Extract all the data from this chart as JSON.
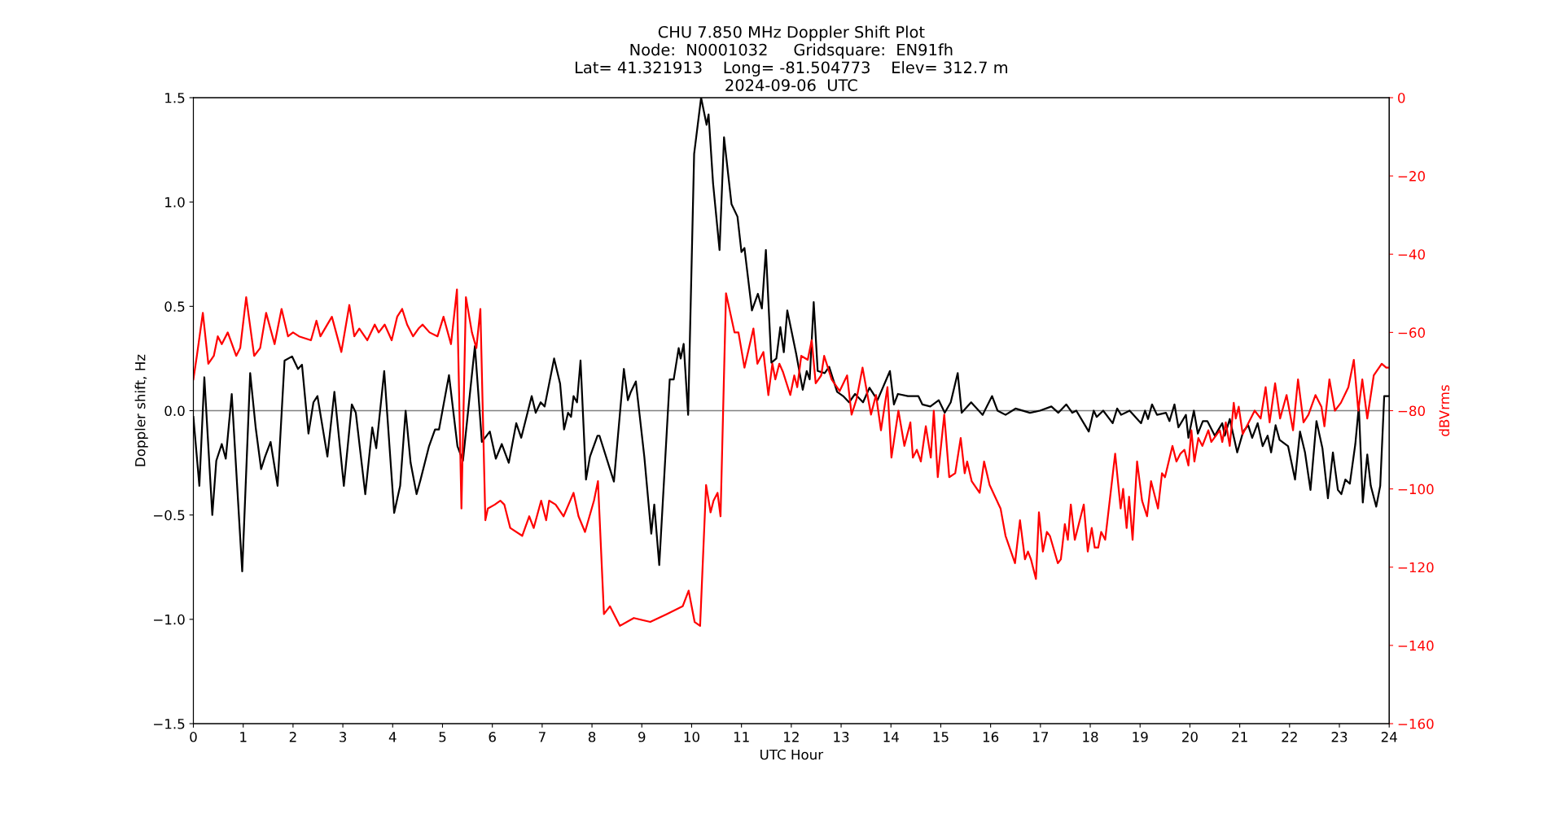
{
  "chart_data": {
    "type": "line",
    "title": "CHU 7.850 MHz Doppler Shift Plot\nNode:  N0001032     Gridsquare:  EN91fh\nLat= 41.321913    Long= -81.504773    Elev= 312.7 m\n2024-09-06  UTC",
    "xlabel": "UTC Hour",
    "ylabel": "Doppler shift, Hz",
    "y2label": "dBVrms",
    "xlim": [
      0,
      24
    ],
    "xticks": [
      0,
      1,
      2,
      3,
      4,
      5,
      6,
      7,
      8,
      9,
      10,
      11,
      12,
      13,
      14,
      15,
      16,
      17,
      18,
      19,
      20,
      21,
      22,
      23,
      24
    ],
    "ylim": [
      -1.5,
      1.5
    ],
    "yticks": [
      {
        "value": -1.5,
        "label": "−1.5"
      },
      {
        "value": -1.0,
        "label": "−1.0"
      },
      {
        "value": -0.5,
        "label": "−0.5"
      },
      {
        "value": 0.0,
        "label": "0.0"
      },
      {
        "value": 0.5,
        "label": "0.5"
      },
      {
        "value": 1.0,
        "label": "1.0"
      },
      {
        "value": 1.5,
        "label": "1.5"
      }
    ],
    "y2lim": [
      -160,
      0
    ],
    "y2ticks": [
      {
        "value": -160,
        "label": "−160"
      },
      {
        "value": -140,
        "label": "−140"
      },
      {
        "value": -120,
        "label": "−120"
      },
      {
        "value": -100,
        "label": "−100"
      },
      {
        "value": -80,
        "label": "−80"
      },
      {
        "value": -60,
        "label": "−60"
      },
      {
        "value": -40,
        "label": "−40"
      },
      {
        "value": -20,
        "label": "−20"
      },
      0
    ],
    "grid": false,
    "legend": false,
    "line_style": "solid",
    "marker": "none",
    "ref_lines": [
      {
        "axis": "y",
        "value": 0,
        "color": "#808080"
      }
    ],
    "series": [
      {
        "color": "#000000",
        "axis": "y",
        "x": [
          0.0,
          0.12,
          0.22,
          0.38,
          0.46,
          0.57,
          0.65,
          0.77,
          0.98,
          1.14,
          1.25,
          1.36,
          1.44,
          1.55,
          1.69,
          1.83,
          1.98,
          2.1,
          2.18,
          2.31,
          2.41,
          2.49,
          2.69,
          2.83,
          3.02,
          3.18,
          3.26,
          3.45,
          3.59,
          3.67,
          3.83,
          4.03,
          4.15,
          4.26,
          4.36,
          4.48,
          4.56,
          4.73,
          4.85,
          4.93,
          5.13,
          5.3,
          5.41,
          5.65,
          5.79,
          5.95,
          6.07,
          6.19,
          6.33,
          6.48,
          6.58,
          6.79,
          6.87,
          6.97,
          7.05,
          7.24,
          7.36,
          7.44,
          7.52,
          7.58,
          7.63,
          7.7,
          7.77,
          7.88,
          7.96,
          8.11,
          8.15,
          8.44,
          8.64,
          8.72,
          8.78,
          8.88,
          9.05,
          9.19,
          9.25,
          9.35,
          9.56,
          9.64,
          9.74,
          9.78,
          9.84,
          9.93,
          10.05,
          10.19,
          10.3,
          10.34,
          10.43,
          10.56,
          10.65,
          10.8,
          10.92,
          11.0,
          11.06,
          11.21,
          11.33,
          11.41,
          11.49,
          11.6,
          11.7,
          11.78,
          11.85,
          11.92,
          12.1,
          12.23,
          12.31,
          12.37,
          12.45,
          12.53,
          12.67,
          12.76,
          12.92,
          13.04,
          13.16,
          13.28,
          13.44,
          13.57,
          13.73,
          13.98,
          14.06,
          14.14,
          14.34,
          14.55,
          14.63,
          14.79,
          14.96,
          15.08,
          15.2,
          15.34,
          15.42,
          15.61,
          15.84,
          16.03,
          16.14,
          16.3,
          16.5,
          16.79,
          16.99,
          17.22,
          17.36,
          17.52,
          17.64,
          17.72,
          17.97,
          18.07,
          18.13,
          18.26,
          18.45,
          18.54,
          18.62,
          18.79,
          19.02,
          19.1,
          19.16,
          19.24,
          19.34,
          19.52,
          19.59,
          19.69,
          19.77,
          19.92,
          19.97,
          20.08,
          20.16,
          20.26,
          20.35,
          20.5,
          20.65,
          20.7,
          20.8,
          20.95,
          21.07,
          21.17,
          21.25,
          21.36,
          21.46,
          21.56,
          21.63,
          21.72,
          21.8,
          21.97,
          22.11,
          22.21,
          22.31,
          22.42,
          22.54,
          22.66,
          22.77,
          22.87,
          22.97,
          23.04,
          23.12,
          23.21,
          23.32,
          23.39,
          23.47,
          23.56,
          23.63,
          23.74,
          23.82,
          23.9,
          24.0
        ],
        "values": [
          -0.03,
          -0.36,
          0.16,
          -0.5,
          -0.24,
          -0.16,
          -0.23,
          0.08,
          -0.77,
          0.18,
          -0.08,
          -0.28,
          -0.22,
          -0.15,
          -0.36,
          0.24,
          0.26,
          0.2,
          0.22,
          -0.11,
          0.04,
          0.07,
          -0.22,
          0.09,
          -0.36,
          0.03,
          -0.01,
          -0.4,
          -0.08,
          -0.18,
          0.19,
          -0.49,
          -0.36,
          0.0,
          -0.25,
          -0.4,
          -0.33,
          -0.17,
          -0.09,
          -0.09,
          0.17,
          -0.17,
          -0.24,
          0.31,
          -0.15,
          -0.1,
          -0.23,
          -0.16,
          -0.25,
          -0.06,
          -0.13,
          0.07,
          -0.01,
          0.04,
          0.02,
          0.25,
          0.13,
          -0.09,
          -0.01,
          -0.03,
          0.07,
          0.04,
          0.24,
          -0.33,
          -0.22,
          -0.12,
          -0.12,
          -0.34,
          0.2,
          0.05,
          0.09,
          0.14,
          -0.22,
          -0.59,
          -0.45,
          -0.74,
          0.15,
          0.15,
          0.3,
          0.25,
          0.32,
          -0.02,
          1.23,
          1.5,
          1.37,
          1.42,
          1.09,
          0.77,
          1.31,
          0.99,
          0.93,
          0.76,
          0.78,
          0.48,
          0.56,
          0.49,
          0.77,
          0.23,
          0.25,
          0.4,
          0.28,
          0.48,
          0.27,
          0.1,
          0.19,
          0.15,
          0.52,
          0.19,
          0.18,
          0.21,
          0.09,
          0.07,
          0.04,
          0.08,
          0.04,
          0.11,
          0.05,
          0.19,
          0.03,
          0.08,
          0.07,
          0.07,
          0.03,
          0.02,
          0.05,
          -0.01,
          0.04,
          0.18,
          -0.01,
          0.04,
          -0.02,
          0.07,
          0.0,
          -0.02,
          0.01,
          -0.01,
          0.0,
          0.02,
          -0.01,
          0.03,
          -0.01,
          0.0,
          -0.1,
          0.0,
          -0.03,
          0.0,
          -0.06,
          0.01,
          -0.02,
          0.0,
          -0.06,
          0.0,
          -0.04,
          0.03,
          -0.02,
          -0.01,
          -0.05,
          0.03,
          -0.08,
          -0.02,
          -0.13,
          0.0,
          -0.11,
          -0.05,
          -0.05,
          -0.12,
          -0.06,
          -0.12,
          -0.04,
          -0.2,
          -0.1,
          -0.07,
          -0.13,
          -0.06,
          -0.17,
          -0.12,
          -0.2,
          -0.07,
          -0.14,
          -0.17,
          -0.33,
          -0.1,
          -0.2,
          -0.38,
          -0.05,
          -0.18,
          -0.42,
          -0.2,
          -0.38,
          -0.4,
          -0.33,
          -0.35,
          -0.16,
          0.02,
          -0.44,
          -0.21,
          -0.36,
          -0.46,
          -0.36,
          0.07,
          0.07
        ]
      },
      {
        "color": "#ff0000",
        "axis": "y2",
        "x": [
          0.0,
          0.07,
          0.19,
          0.3,
          0.41,
          0.49,
          0.57,
          0.69,
          0.86,
          0.94,
          1.06,
          1.22,
          1.34,
          1.46,
          1.63,
          1.77,
          1.9,
          2.0,
          2.12,
          2.36,
          2.47,
          2.55,
          2.78,
          2.97,
          3.13,
          3.23,
          3.33,
          3.49,
          3.64,
          3.72,
          3.84,
          3.98,
          4.09,
          4.19,
          4.29,
          4.41,
          4.52,
          4.6,
          4.74,
          4.9,
          5.02,
          5.17,
          5.29,
          5.38,
          5.47,
          5.59,
          5.68,
          5.76,
          5.86,
          5.91,
          6.05,
          6.16,
          6.24,
          6.36,
          6.6,
          6.74,
          6.83,
          6.98,
          7.08,
          7.14,
          7.27,
          7.43,
          7.63,
          7.73,
          7.86,
          8.04,
          8.12,
          8.24,
          8.36,
          8.56,
          8.84,
          9.17,
          9.5,
          9.82,
          9.94,
          10.06,
          10.17,
          10.29,
          10.38,
          10.44,
          10.52,
          10.58,
          10.69,
          10.86,
          10.94,
          11.06,
          11.24,
          11.32,
          11.44,
          11.54,
          11.62,
          11.68,
          11.76,
          11.83,
          11.98,
          12.06,
          12.12,
          12.2,
          12.33,
          12.41,
          12.49,
          12.6,
          12.66,
          12.81,
          12.97,
          13.12,
          13.21,
          13.31,
          13.43,
          13.6,
          13.7,
          13.8,
          13.93,
          14.01,
          14.15,
          14.27,
          14.39,
          14.44,
          14.52,
          14.6,
          14.7,
          14.8,
          14.86,
          14.94,
          15.07,
          15.17,
          15.29,
          15.4,
          15.48,
          15.53,
          15.62,
          15.78,
          15.87,
          15.98,
          16.2,
          16.3,
          16.49,
          16.59,
          16.69,
          16.75,
          16.81,
          16.91,
          16.97,
          17.05,
          17.13,
          17.19,
          17.35,
          17.41,
          17.49,
          17.55,
          17.61,
          17.69,
          17.75,
          17.87,
          17.95,
          18.03,
          18.09,
          18.16,
          18.22,
          18.3,
          18.5,
          18.61,
          18.66,
          18.73,
          18.78,
          18.85,
          18.94,
          19.04,
          19.14,
          19.22,
          19.3,
          19.36,
          19.44,
          19.5,
          19.65,
          19.73,
          19.81,
          19.89,
          19.97,
          20.03,
          20.09,
          20.17,
          20.25,
          20.37,
          20.43,
          20.6,
          20.65,
          20.72,
          20.8,
          20.88,
          20.92,
          20.98,
          21.06,
          21.18,
          21.3,
          21.42,
          21.52,
          21.6,
          21.71,
          21.81,
          21.94,
          22.07,
          22.17,
          22.28,
          22.38,
          22.52,
          22.64,
          22.7,
          22.8,
          22.91,
          23.03,
          23.18,
          23.29,
          23.38,
          23.46,
          23.56,
          23.69,
          23.85,
          23.94,
          24.0
        ],
        "values": [
          -72,
          -66,
          -55,
          -68,
          -66,
          -61,
          -63,
          -60,
          -66,
          -64,
          -51,
          -66,
          -64,
          -55,
          -63,
          -54,
          -61,
          -60,
          -61,
          -62,
          -57,
          -61,
          -56,
          -65,
          -53,
          -61,
          -59,
          -62,
          -58,
          -60,
          -58,
          -62,
          -56,
          -54,
          -58,
          -61,
          -59,
          -58,
          -60,
          -61,
          -56,
          -63,
          -49,
          -105,
          -51,
          -60,
          -64,
          -54,
          -108,
          -105,
          -104,
          -103,
          -104,
          -110,
          -112,
          -107,
          -110,
          -103,
          -108,
          -103,
          -104,
          -107,
          -101,
          -107,
          -111,
          -103,
          -98,
          -132,
          -130,
          -135,
          -133,
          -134,
          -132,
          -130,
          -126,
          -134,
          -135,
          -99,
          -106,
          -103,
          -101,
          -107,
          -50,
          -60,
          -60,
          -69,
          -59,
          -68,
          -65,
          -76,
          -68,
          -72,
          -68,
          -70,
          -76,
          -71,
          -74,
          -66,
          -67,
          -62,
          -73,
          -71,
          -66,
          -72,
          -75,
          -71,
          -81,
          -77,
          -69,
          -81,
          -76,
          -85,
          -74,
          -92,
          -80,
          -89,
          -83,
          -92,
          -90,
          -93,
          -84,
          -92,
          -80,
          -97,
          -81,
          -97,
          -96,
          -87,
          -96,
          -93,
          -98,
          -101,
          -93,
          -99,
          -105,
          -112,
          -119,
          -108,
          -118,
          -116,
          -118,
          -123,
          -106,
          -116,
          -111,
          -112,
          -119,
          -118,
          -109,
          -113,
          -104,
          -113,
          -110,
          -104,
          -116,
          -110,
          -115,
          -115,
          -111,
          -113,
          -91,
          -105,
          -100,
          -110,
          -102,
          -113,
          -93,
          -103,
          -107,
          -98,
          -102,
          -105,
          -96,
          -97,
          -89,
          -93,
          -91,
          -90,
          -94,
          -85,
          -93,
          -87,
          -89,
          -85,
          -88,
          -85,
          -88,
          -83,
          -89,
          -78,
          -82,
          -79,
          -86,
          -83,
          -80,
          -82,
          -74,
          -83,
          -73,
          -82,
          -76,
          -85,
          -72,
          -83,
          -81,
          -76,
          -79,
          -84,
          -72,
          -80,
          -78,
          -74,
          -67,
          -80,
          -72,
          -82,
          -71,
          -68,
          -69,
          -69
        ]
      }
    ]
  }
}
